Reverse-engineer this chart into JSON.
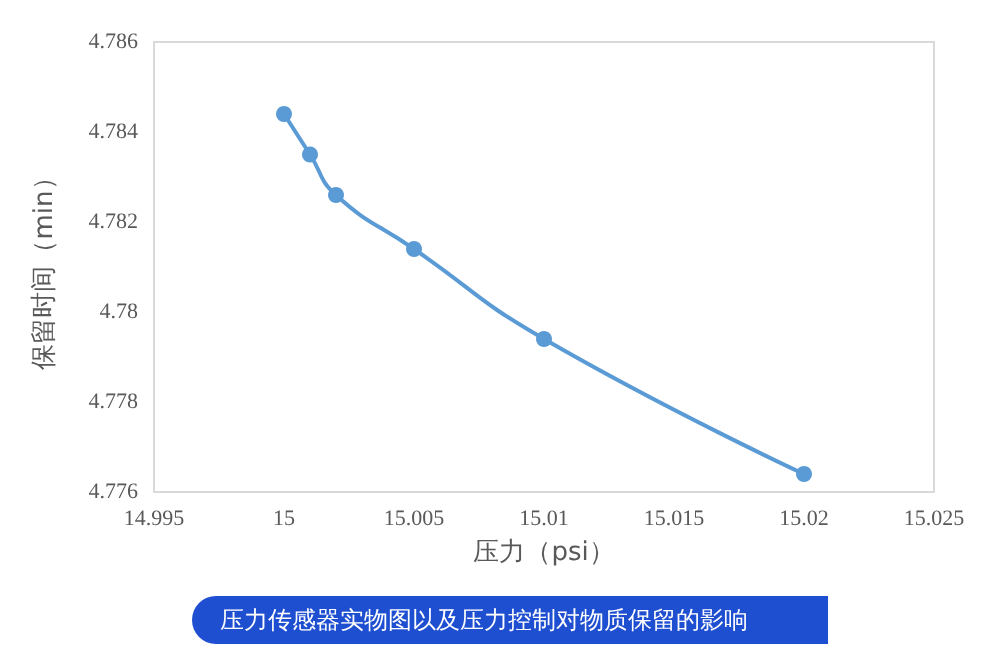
{
  "chart_data": {
    "type": "line",
    "xlabel": "压力（psi）",
    "ylabel": "保留时间（min）",
    "x": [
      15,
      15.001,
      15.002,
      15.005,
      15.01,
      15.02
    ],
    "series": [
      {
        "color": "#5b9bd5",
        "values": [
          4.7844,
          4.7835,
          4.7826,
          4.7814,
          4.7794,
          4.7764
        ]
      }
    ],
    "xlim": [
      14.995,
      15.025
    ],
    "xticks": [
      14.995,
      15,
      15.005,
      15.01,
      15.015,
      15.02,
      15.025
    ],
    "ylim": [
      4.776,
      4.786
    ],
    "yticks": [
      4.776,
      4.778,
      4.78,
      4.782,
      4.784,
      4.786
    ],
    "grid": false,
    "marker": "circle",
    "line_style": "solid",
    "annotations": [
      "压力传感器实物图以及压力控制对物质保留的影响"
    ]
  }
}
